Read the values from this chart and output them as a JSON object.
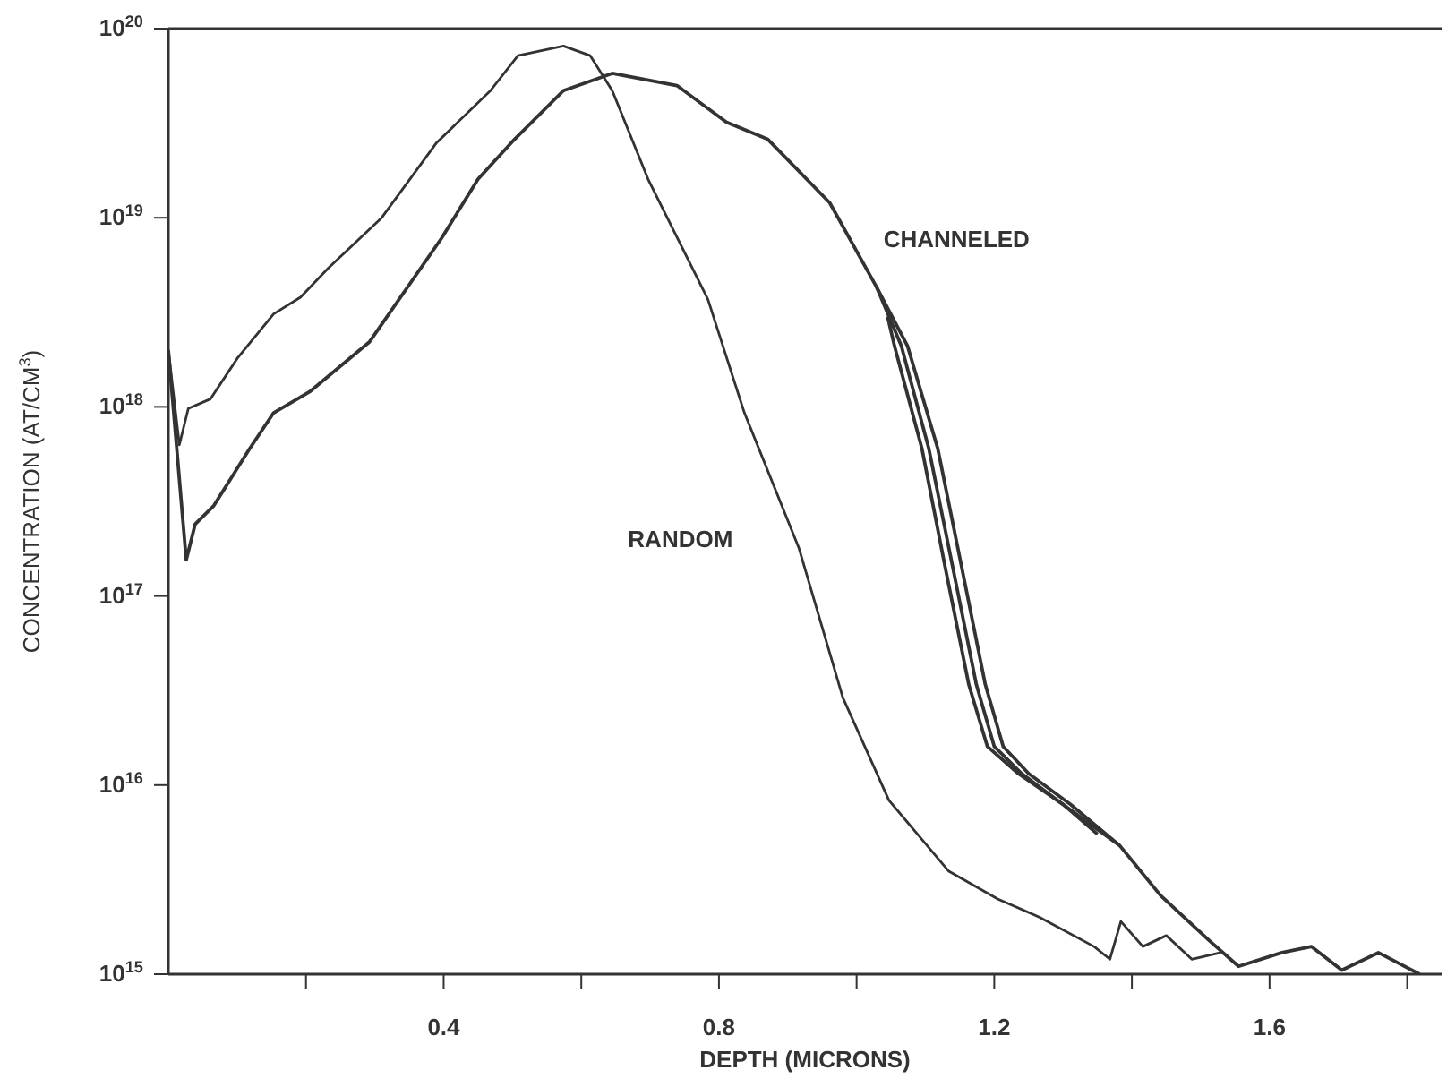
{
  "chart_data": {
    "type": "line",
    "xlabel": "DEPTH (MICRONS)",
    "ylabel": "CONCENTRATION (AT/CM$^{3}$)",
    "log": "y",
    "marker": "none",
    "line_style": "solid",
    "xlim": [
      0,
      1.85
    ],
    "xticks": [
      {
        "value": 0.2,
        "label": null
      },
      0.4,
      {
        "value": 0.6,
        "label": null
      },
      0.8,
      {
        "value": 1.0,
        "label": null
      },
      1.2,
      {
        "value": 1.4,
        "label": null
      },
      1.6,
      {
        "value": 1.8,
        "label": null
      }
    ],
    "ylim": [
      1000000000000000.0,
      1e+20
    ],
    "yticks": [
      {
        "value": 1000000000000000.0,
        "label": "10$^{15}$"
      },
      {
        "value": 1e+16,
        "label": "10$^{16}$"
      },
      {
        "value": 1e+17,
        "label": "10$^{17}$"
      },
      {
        "value": 1e+18,
        "label": "10$^{18}$"
      },
      {
        "value": 1e+19,
        "label": "10$^{19}$"
      },
      {
        "value": 1e+20,
        "label": "10$^{20}$"
      }
    ],
    "series": [
      {
        "name": "RANDOM",
        "color": "#333333",
        "x": [
          0,
          0.016,
          0.029,
          0.061,
          0.1,
          0.153,
          0.192,
          0.232,
          0.31,
          0.39,
          0.468,
          0.508,
          0.574,
          0.613,
          0.645,
          0.697,
          0.784,
          0.837,
          0.916,
          0.98,
          1.047,
          1.134,
          1.205,
          1.266,
          1.345,
          1.368,
          1.384,
          1.416,
          1.45,
          1.487,
          1.529
        ],
        "values": [
          2e+18,
          6.3e+17,
          9.8e+17,
          1.1e+18,
          1.8e+18,
          3.1e+18,
          3.8e+18,
          5.4e+18,
          1e+19,
          2.5e+19,
          4.7e+19,
          7.2e+19,
          8.1e+19,
          7.2e+19,
          4.7e+19,
          1.6e+19,
          3.7e+18,
          9.3e+17,
          1.8e+17,
          2.9e+16,
          8300000000000000.0,
          3500000000000000.0,
          2500000000000000.0,
          2000000000000000.0,
          1400000000000000.0,
          1200000000000000.0,
          1900000000000000.0,
          1400000000000000.0,
          1600000000000000.0,
          1200000000000000.0,
          1300000000000000.0
        ]
      },
      {
        "name": "CHANNELED",
        "color": "#333333",
        "x": [
          0,
          0.026,
          0.039,
          0.066,
          0.118,
          0.153,
          0.205,
          0.292,
          0.397,
          0.45,
          0.503,
          0.574,
          0.645,
          0.739,
          0.811,
          0.871,
          0.961,
          1.029,
          1.074,
          1.118,
          1.153,
          1.187,
          1.213,
          1.25,
          1.311,
          1.382,
          1.442,
          1.513,
          1.555,
          1.618,
          1.661,
          1.705,
          1.758,
          1.818
        ],
        "values": [
          2e+18,
          1.55e+17,
          2.4e+17,
          3e+17,
          6e+17,
          9.3e+17,
          1.2e+18,
          2.2e+18,
          7.8e+18,
          1.6e+19,
          2.6e+19,
          4.7e+19,
          5.8e+19,
          5e+19,
          3.2e+19,
          2.6e+19,
          1.2e+19,
          4.3e+18,
          2.1e+18,
          6e+17,
          1.4e+17,
          3.4e+16,
          1.6e+16,
          1.15e+16,
          7900000000000000.0,
          4800000000000000.0,
          2600000000000000.0,
          1500000000000000.0,
          1100000000000000.0,
          1300000000000000.0,
          1400000000000000.0,
          1050000000000000.0,
          1300000000000000.0,
          1000000000000000.0
        ]
      },
      {
        "color": "#333333",
        "x": [
          1.029,
          1.065,
          1.105,
          1.14,
          1.174,
          1.2,
          1.24,
          1.3,
          1.382
        ],
        "values": [
          4.3e+18,
          2.1e+18,
          6e+17,
          1.4e+17,
          3.4e+16,
          1.6e+16,
          1.15e+16,
          7900000000000000.0,
          4800000000000000.0
        ]
      },
      {
        "color": "#333333",
        "x": [
          1.045,
          1.055,
          1.095,
          1.129,
          1.163,
          1.19,
          1.235,
          1.3,
          1.35
        ],
        "values": [
          3e+18,
          2.1e+18,
          6e+17,
          1.4e+17,
          3.4e+16,
          1.6e+16,
          1.15e+16,
          7900000000000000.0,
          5500000000000000.0
        ]
      }
    ]
  }
}
